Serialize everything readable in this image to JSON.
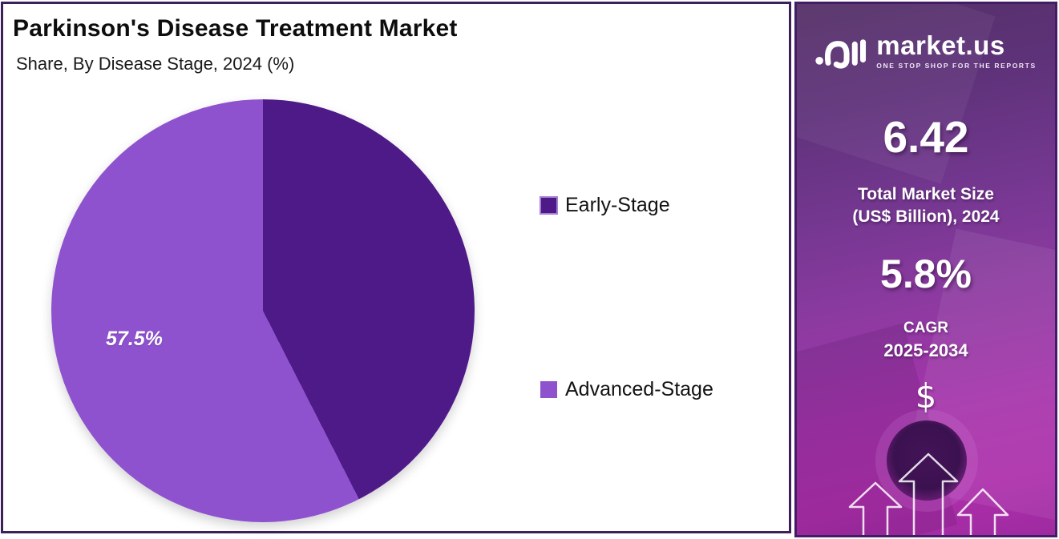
{
  "header": {
    "title": "Parkinson's Disease Treatment Market",
    "subtitle": "Share, By Disease Stage, 2024 (%)"
  },
  "chart_data": {
    "type": "pie",
    "title": "Parkinson's Disease Treatment Market",
    "subtitle": "Share, By Disease Stage, 2024 (%)",
    "labels": [
      "Early-Stage",
      "Advanced-Stage"
    ],
    "values": [
      42.5,
      57.5
    ],
    "colors": [
      "#4e1a88",
      "#8e52ce"
    ],
    "start_angle_deg": 0,
    "direction": "clockwise",
    "slice_label": "57.5%",
    "slice_label_on": "Advanced-Stage",
    "legend_position": "right"
  },
  "legend": {
    "items": [
      {
        "label": "Early-Stage",
        "color": "#4e1a88"
      },
      {
        "label": "Advanced-Stage",
        "color": "#8e52ce"
      }
    ]
  },
  "sidebar": {
    "logo": {
      "brand": "market.us",
      "tagline": "ONE STOP SHOP FOR THE REPORTS",
      "icon": "market-us-logo-icon"
    },
    "market_size_value": "6.42",
    "market_size_label": "Total Market Size\n(US$ Billion), 2024",
    "cagr_value": "5.8%",
    "cagr_label": "CAGR",
    "cagr_range": "2025-2034",
    "dollar_symbol": "$",
    "icons": [
      "dollar-icon",
      "coffee-cup-photo",
      "growth-arrows-icon"
    ],
    "colors": {
      "gradient_top": "#543067",
      "gradient_bottom": "#ad2fab",
      "border": "#441c66"
    }
  }
}
